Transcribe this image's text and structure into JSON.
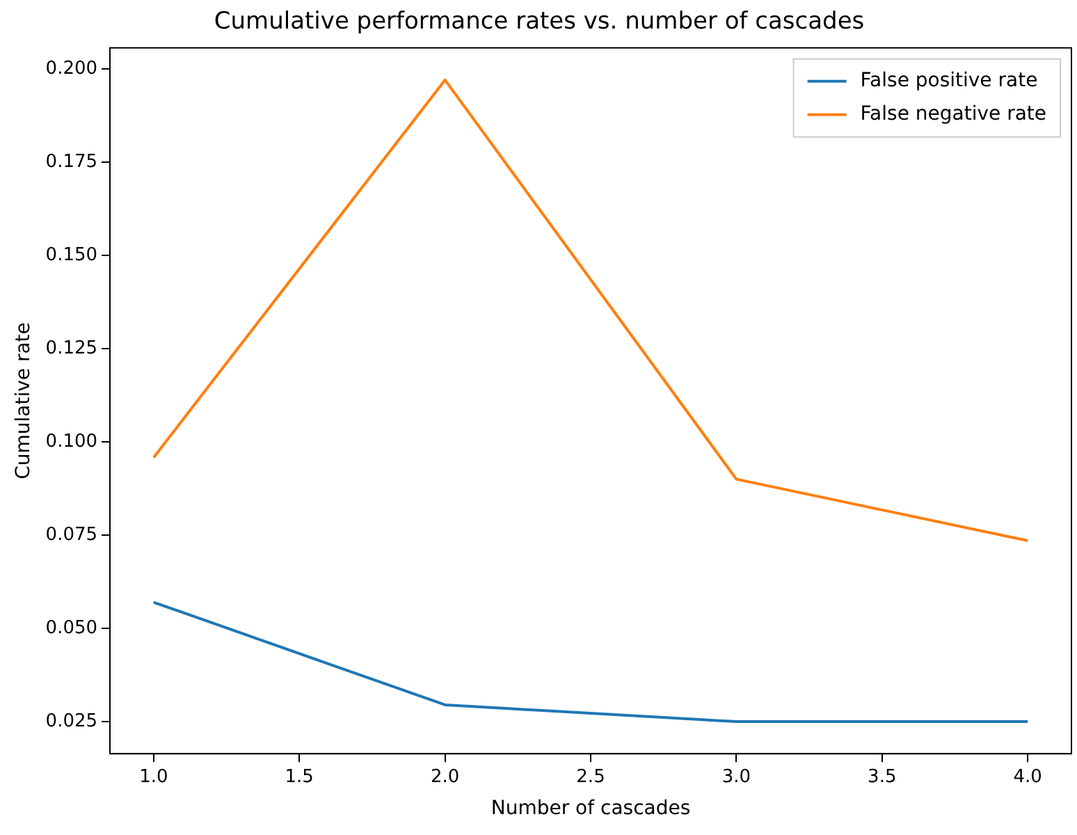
{
  "chart_data": {
    "type": "line",
    "title": "Cumulative performance rates vs. number of cascades",
    "xlabel": "Number of cascades",
    "ylabel": "Cumulative rate",
    "x": [
      1,
      2,
      3,
      4
    ],
    "series": [
      {
        "name": "False positive rate",
        "color": "#1f77b4",
        "values": [
          0.057,
          0.0295,
          0.025,
          0.025
        ]
      },
      {
        "name": "False negative rate",
        "color": "#ff7f0e",
        "values": [
          0.0958,
          0.197,
          0.09,
          0.0735
        ]
      }
    ],
    "xlim": [
      0.85,
      4.15
    ],
    "xticks": [
      {
        "value": 1,
        "label": "1.0"
      },
      {
        "value": 1.5,
        "label": "1.5"
      },
      {
        "value": 2,
        "label": "2.0"
      },
      {
        "value": 2.5,
        "label": "2.5"
      },
      {
        "value": 3,
        "label": "3.0"
      },
      {
        "value": 3.5,
        "label": "3.5"
      },
      {
        "value": 4,
        "label": "4.0"
      }
    ],
    "ylim": [
      0.0164,
      0.2056
    ],
    "yticks": [
      0.025,
      {
        "value": 0.05,
        "label": "0.050"
      },
      0.075,
      {
        "value": 0.1,
        "label": "0.100"
      },
      0.125,
      {
        "value": 0.15,
        "label": "0.150"
      },
      0.175,
      {
        "value": 0.2,
        "label": "0.200"
      }
    ],
    "grid": false,
    "legend": "top right",
    "marker": "none",
    "line_style": "solid"
  }
}
